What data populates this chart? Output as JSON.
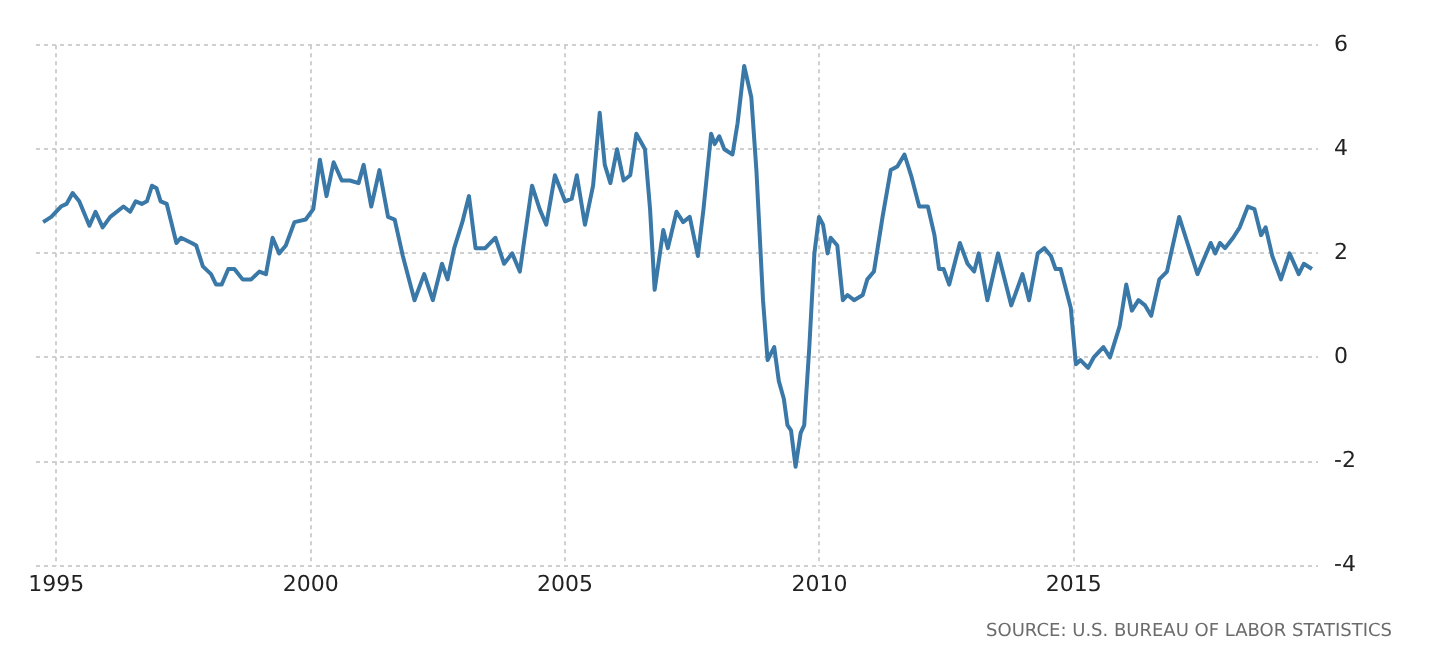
{
  "chart_data": {
    "type": "line",
    "x": [
      1994.74,
      1994.9,
      1995.09,
      1995.2,
      1995.32,
      1995.45,
      1995.65,
      1995.77,
      1995.91,
      1996.06,
      1996.32,
      1996.45,
      1996.56,
      1996.68,
      1996.78,
      1996.88,
      1996.97,
      1997.05,
      1997.17,
      1997.36,
      1997.45,
      1997.66,
      1997.75,
      1997.88,
      1998.04,
      1998.14,
      1998.25,
      1998.38,
      1998.5,
      1998.66,
      1998.83,
      1998.99,
      1999.12,
      1999.25,
      1999.38,
      1999.51,
      1999.68,
      1999.9,
      2000.05,
      2000.18,
      2000.31,
      2000.45,
      2000.61,
      2000.77,
      2000.94,
      2001.04,
      2001.19,
      2001.35,
      2001.52,
      2001.65,
      2001.81,
      2002.04,
      2002.23,
      2002.4,
      2002.58,
      2002.69,
      2002.82,
      2002.98,
      2003.11,
      2003.24,
      2003.43,
      2003.63,
      2003.8,
      2003.96,
      2004.11,
      2004.35,
      2004.5,
      2004.63,
      2004.8,
      2005.0,
      2005.13,
      2005.23,
      2005.39,
      2005.55,
      2005.68,
      2005.78,
      2005.89,
      2006.02,
      2006.15,
      2006.28,
      2006.4,
      2006.57,
      2006.67,
      2006.76,
      2006.93,
      2007.02,
      2007.19,
      2007.32,
      2007.45,
      2007.61,
      2007.72,
      2007.87,
      2007.94,
      2008.03,
      2008.13,
      2008.29,
      2008.39,
      2008.52,
      2008.66,
      2008.76,
      2008.89,
      2008.98,
      2009.11,
      2009.2,
      2009.3,
      2009.37,
      2009.44,
      2009.53,
      2009.63,
      2009.7,
      2009.8,
      2009.9,
      2009.99,
      2010.07,
      2010.16,
      2010.22,
      2010.35,
      2010.46,
      2010.55,
      2010.68,
      2010.85,
      2010.94,
      2011.07,
      2011.24,
      2011.4,
      2011.53,
      2011.67,
      2011.8,
      2011.96,
      2012.13,
      2012.26,
      2012.35,
      2012.44,
      2012.55,
      2012.76,
      2012.91,
      2013.04,
      2013.13,
      2013.3,
      2013.51,
      2013.77,
      2013.99,
      2014.12,
      2014.29,
      2014.42,
      2014.55,
      2014.64,
      2014.74,
      2014.94,
      2015.04,
      2015.13,
      2015.28,
      2015.39,
      2015.58,
      2015.71,
      2015.9,
      2016.03,
      2016.14,
      2016.27,
      2016.4,
      2016.52,
      2016.68,
      2016.83,
      2017.07,
      2017.2,
      2017.43,
      2017.69,
      2017.78,
      2017.87,
      2017.97,
      2018.13,
      2018.26,
      2018.42,
      2018.55,
      2018.68,
      2018.77,
      2018.9,
      2019.07,
      2019.24,
      2019.42,
      2019.52,
      2019.68
    ],
    "series": [
      {
        "color": "#3a78a8",
        "values": [
          2.6,
          2.7,
          2.9,
          2.95,
          3.16,
          3.0,
          2.53,
          2.8,
          2.5,
          2.7,
          2.9,
          2.8,
          3.0,
          2.95,
          3.0,
          3.3,
          3.25,
          3.0,
          2.95,
          2.2,
          2.3,
          2.2,
          2.15,
          1.75,
          1.6,
          1.4,
          1.4,
          1.7,
          1.7,
          1.5,
          1.5,
          1.65,
          1.6,
          2.3,
          2.0,
          2.15,
          2.6,
          2.65,
          2.85,
          3.8,
          3.1,
          3.75,
          3.4,
          3.4,
          3.35,
          3.7,
          2.9,
          3.6,
          2.7,
          2.65,
          1.95,
          1.1,
          1.6,
          1.1,
          1.8,
          1.5,
          2.1,
          2.6,
          3.1,
          2.1,
          2.1,
          2.3,
          1.8,
          2.0,
          1.65,
          3.3,
          2.85,
          2.55,
          3.5,
          3.0,
          3.05,
          3.5,
          2.55,
          3.3,
          4.7,
          3.7,
          3.35,
          4.0,
          3.4,
          3.5,
          4.3,
          4.0,
          2.85,
          1.3,
          2.45,
          2.1,
          2.8,
          2.6,
          2.7,
          1.95,
          2.85,
          4.3,
          4.1,
          4.25,
          4.0,
          3.9,
          4.5,
          5.6,
          5.0,
          3.6,
          1.1,
          -0.05,
          0.2,
          -0.45,
          -0.8,
          -1.3,
          -1.4,
          -2.1,
          -1.45,
          -1.3,
          0.2,
          2.0,
          2.7,
          2.55,
          2.0,
          2.3,
          2.15,
          1.1,
          1.2,
          1.1,
          1.2,
          1.5,
          1.65,
          2.7,
          3.6,
          3.67,
          3.9,
          3.5,
          2.9,
          2.9,
          2.35,
          1.7,
          1.7,
          1.4,
          2.2,
          1.8,
          1.65,
          2.0,
          1.1,
          2.0,
          1.0,
          1.6,
          1.1,
          2.0,
          2.1,
          1.95,
          1.7,
          1.7,
          0.95,
          -0.13,
          -0.05,
          -0.2,
          0.0,
          0.2,
          0.0,
          0.6,
          1.4,
          0.9,
          1.1,
          1.0,
          0.8,
          1.5,
          1.65,
          2.7,
          2.3,
          1.6,
          2.2,
          2.0,
          2.2,
          2.1,
          2.3,
          2.5,
          2.9,
          2.85,
          2.35,
          2.5,
          1.95,
          1.5,
          2.0,
          1.6,
          1.8,
          1.7
        ]
      }
    ],
    "xlim": [
      1994.6,
      2019.8
    ],
    "xticks": [
      1995,
      2000,
      2005,
      2010,
      2015
    ],
    "ylim": [
      -4,
      6
    ],
    "yticks": [
      -4,
      -2,
      0,
      2,
      4,
      6
    ],
    "grid": true,
    "marker": "none",
    "line_style": "solid",
    "annotations": [
      "SOURCE: U.S. BUREAU OF LABOR STATISTICS"
    ]
  }
}
